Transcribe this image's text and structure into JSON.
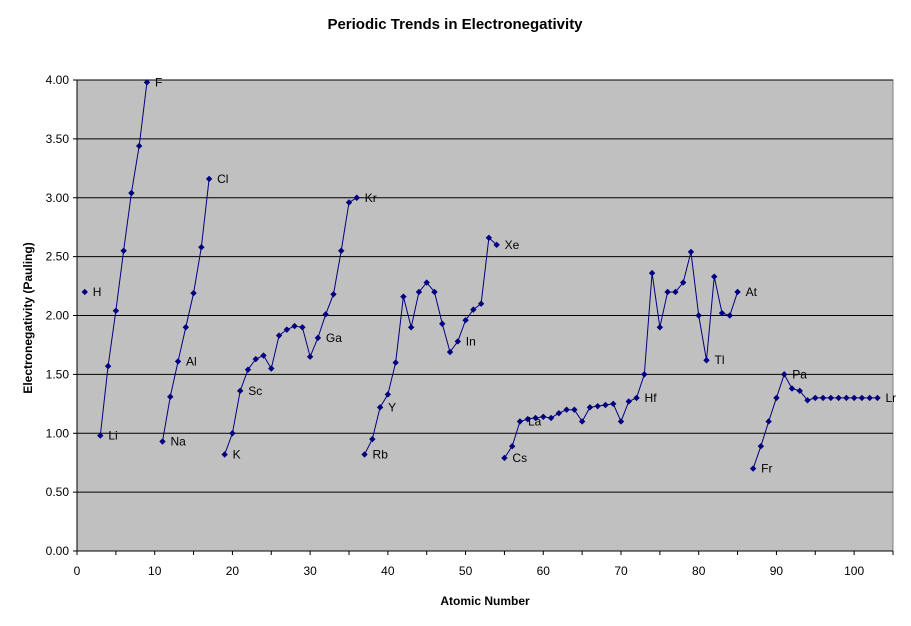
{
  "chart_data": {
    "type": "line",
    "title": "Periodic Trends in Electronegativity",
    "xlabel": "Atomic Number",
    "ylabel": "Electronegativity (Pauling)",
    "xlim": [
      0,
      105
    ],
    "ylim": [
      0,
      4
    ],
    "xticks": [
      0,
      10,
      20,
      30,
      40,
      50,
      60,
      70,
      80,
      90,
      100
    ],
    "yticks": [
      0,
      0.5,
      1,
      1.5,
      2,
      2.5,
      3,
      3.5,
      4
    ],
    "xtick_labels": [
      "0",
      "10",
      "20",
      "30",
      "40",
      "50",
      "60",
      "70",
      "80",
      "90",
      "100"
    ],
    "ytick_labels": [
      "0.00",
      "0.50",
      "1.00",
      "1.50",
      "2.00",
      "2.50",
      "3.00",
      "3.50",
      "4.00"
    ],
    "grid": "horizontal",
    "legend": "none",
    "colors": {
      "plot_background": "#C0C0C0",
      "series": "#000080",
      "gridline": "#000000"
    },
    "series": [
      {
        "name": "",
        "x": [
          1
        ],
        "y": [
          2.2
        ]
      },
      {
        "name": "",
        "x": [
          3,
          4,
          5,
          6,
          7,
          8,
          9
        ],
        "y": [
          0.98,
          1.57,
          2.04,
          2.55,
          3.04,
          3.44,
          3.98
        ]
      },
      {
        "name": "",
        "x": [
          11,
          12,
          13,
          14,
          15,
          16,
          17
        ],
        "y": [
          0.93,
          1.31,
          1.61,
          1.9,
          2.19,
          2.58,
          3.16
        ]
      },
      {
        "name": "",
        "x": [
          19,
          20,
          21,
          22,
          23,
          24,
          25,
          26,
          27,
          28,
          29,
          30,
          31,
          32,
          33,
          34,
          35,
          36
        ],
        "y": [
          0.82,
          1.0,
          1.36,
          1.54,
          1.63,
          1.66,
          1.55,
          1.83,
          1.88,
          1.91,
          1.9,
          1.65,
          1.81,
          2.01,
          2.18,
          2.55,
          2.96,
          3.0
        ]
      },
      {
        "name": "",
        "x": [
          37,
          38,
          39,
          40,
          41,
          42,
          43,
          44,
          45,
          46,
          47,
          48,
          49,
          50,
          51,
          52,
          53,
          54
        ],
        "y": [
          0.82,
          0.95,
          1.22,
          1.33,
          1.6,
          2.16,
          1.9,
          2.2,
          2.28,
          2.2,
          1.93,
          1.69,
          1.78,
          1.96,
          2.05,
          2.1,
          2.66,
          2.6
        ]
      },
      {
        "name": "",
        "x": [
          55,
          56,
          57,
          58,
          59,
          60,
          61,
          62,
          63,
          64,
          65,
          66,
          67,
          68,
          69,
          70,
          71,
          72,
          73,
          74,
          75,
          76,
          77,
          78,
          79,
          80,
          81,
          82,
          83,
          84,
          85
        ],
        "y": [
          0.79,
          0.89,
          1.1,
          1.12,
          1.13,
          1.14,
          1.13,
          1.17,
          1.2,
          1.2,
          1.1,
          1.22,
          1.23,
          1.24,
          1.25,
          1.1,
          1.27,
          1.3,
          1.5,
          2.36,
          1.9,
          2.2,
          2.2,
          2.28,
          2.54,
          2.0,
          1.62,
          2.33,
          2.02,
          2.0,
          2.2
        ]
      },
      {
        "name": "",
        "x": [
          87,
          88,
          89,
          90,
          91,
          92,
          93,
          94,
          95,
          96,
          97,
          98,
          99,
          100,
          101,
          102,
          103
        ],
        "y": [
          0.7,
          0.89,
          1.1,
          1.3,
          1.5,
          1.38,
          1.36,
          1.28,
          1.3,
          1.3,
          1.3,
          1.3,
          1.3,
          1.3,
          1.3,
          1.3,
          1.3
        ]
      }
    ],
    "annotations": [
      {
        "text": "H",
        "x": 1,
        "y": 2.2
      },
      {
        "text": "Li",
        "x": 3,
        "y": 0.98
      },
      {
        "text": "F",
        "x": 9,
        "y": 3.98
      },
      {
        "text": "Na",
        "x": 11,
        "y": 0.93
      },
      {
        "text": "Al",
        "x": 13,
        "y": 1.61
      },
      {
        "text": "Cl",
        "x": 17,
        "y": 3.16
      },
      {
        "text": "K",
        "x": 19,
        "y": 0.82
      },
      {
        "text": "Sc",
        "x": 21,
        "y": 1.36
      },
      {
        "text": "Ga",
        "x": 31,
        "y": 1.81
      },
      {
        "text": "Kr",
        "x": 36,
        "y": 3.0
      },
      {
        "text": "Rb",
        "x": 37,
        "y": 0.82
      },
      {
        "text": "Y",
        "x": 39,
        "y": 1.22
      },
      {
        "text": "In",
        "x": 49,
        "y": 1.78
      },
      {
        "text": "Xe",
        "x": 54,
        "y": 2.6
      },
      {
        "text": "Cs",
        "x": 55,
        "y": 0.79
      },
      {
        "text": "La",
        "x": 57,
        "y": 1.1
      },
      {
        "text": "Hf",
        "x": 72,
        "y": 1.3
      },
      {
        "text": "Tl",
        "x": 81,
        "y": 1.62
      },
      {
        "text": "At",
        "x": 85,
        "y": 2.2
      },
      {
        "text": "Fr",
        "x": 87,
        "y": 0.7
      },
      {
        "text": "Pa",
        "x": 91,
        "y": 1.5
      },
      {
        "text": "Lr",
        "x": 103,
        "y": 1.3
      }
    ]
  }
}
